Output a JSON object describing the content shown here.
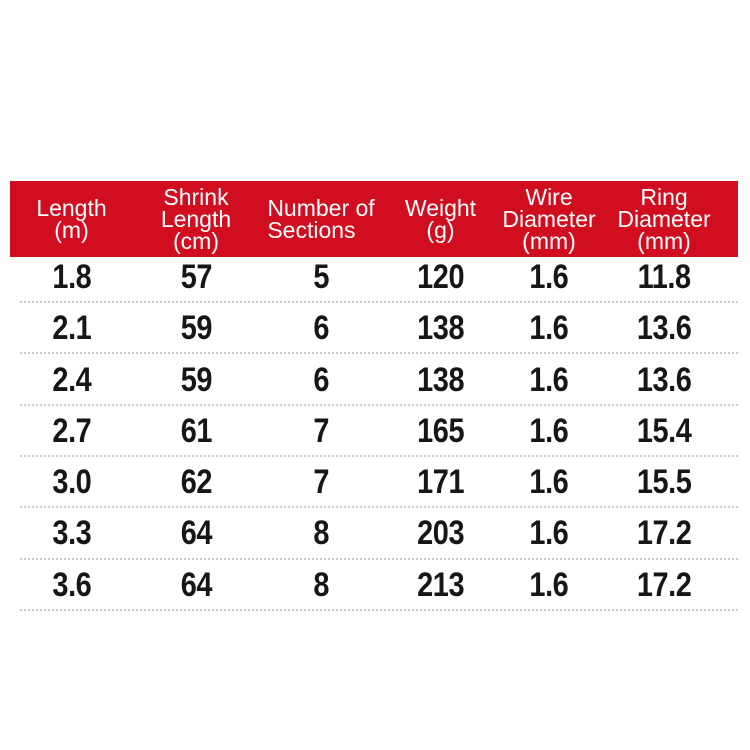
{
  "colors": {
    "page_background": "#ffffff",
    "header_background": "#d00e20",
    "header_text": "#ffffff",
    "body_text": "#161616",
    "divider": "#cbcbcb"
  },
  "table": {
    "headers": [
      "Length\n(m)",
      "Shrink\nLength\n(cm)",
      "Number of\nSections",
      "Weight\n(g)",
      "Wire\nDiameter\n(mm)",
      "Ring\nDiameter\n(mm)"
    ],
    "rows": [
      [
        "1.8",
        "57",
        "5",
        "120",
        "1.6",
        "11.8"
      ],
      [
        "2.1",
        "59",
        "6",
        "138",
        "1.6",
        "13.6"
      ],
      [
        "2.4",
        "59",
        "6",
        "138",
        "1.6",
        "13.6"
      ],
      [
        "2.7",
        "61",
        "7",
        "165",
        "1.6",
        "15.4"
      ],
      [
        "3.0",
        "62",
        "7",
        "171",
        "1.6",
        "15.5"
      ],
      [
        "3.3",
        "64",
        "8",
        "203",
        "1.6",
        "17.2"
      ],
      [
        "3.6",
        "64",
        "8",
        "213",
        "1.6",
        "17.2"
      ]
    ]
  },
  "chart_data": {
    "type": "table",
    "title": "",
    "columns": [
      "Length (m)",
      "Shrink Length (cm)",
      "Number of Sections",
      "Weight (g)",
      "Wire Diameter (mm)",
      "Ring Diameter (mm)"
    ],
    "rows": [
      [
        1.8,
        57,
        5,
        120,
        1.6,
        11.8
      ],
      [
        2.1,
        59,
        6,
        138,
        1.6,
        13.6
      ],
      [
        2.4,
        59,
        6,
        138,
        1.6,
        13.6
      ],
      [
        2.7,
        61,
        7,
        165,
        1.6,
        15.4
      ],
      [
        3.0,
        62,
        7,
        171,
        1.6,
        15.5
      ],
      [
        3.3,
        64,
        8,
        203,
        1.6,
        17.2
      ],
      [
        3.6,
        64,
        8,
        213,
        1.6,
        17.2
      ]
    ]
  }
}
